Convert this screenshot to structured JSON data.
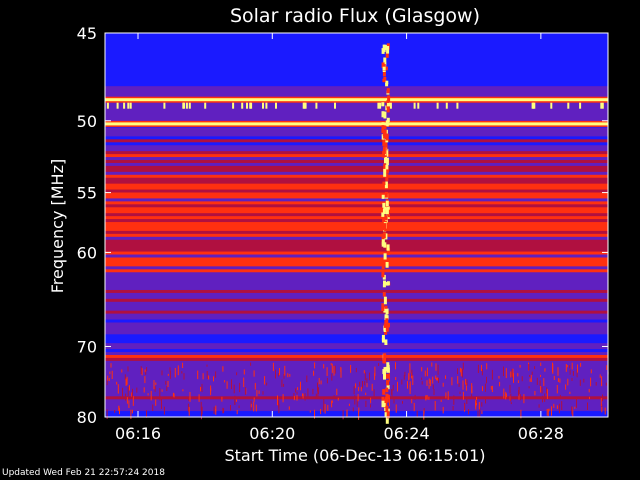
{
  "chart_data": {
    "type": "heatmap",
    "title": "Solar radio Flux (Glasgow)",
    "xlabel": "Start Time (06-Dec-13 06:15:01)",
    "ylabel": "Frequency [MHz]",
    "x_ticks": [
      "06:16",
      "06:20",
      "06:24",
      "06:28"
    ],
    "y_ticks": [
      "45",
      "50",
      "55",
      "60",
      "70",
      "80"
    ],
    "y_scale": "reciprocal",
    "ylim": [
      45,
      80
    ],
    "xlim": [
      "06:15:01",
      "06:30:00"
    ],
    "colors": {
      "low": "#1a1aff",
      "mid_low": "#6020c0",
      "mid": "#b01040",
      "high": "#ff3010",
      "peak": "#ffff80"
    },
    "features": {
      "burst_time": "06:23:20",
      "bright_bands_mhz": [
        48.7,
        50.2
      ],
      "quiet_bands_mhz": [
        [
          45,
          48
        ],
        [
          68.5,
          69.5
        ],
        [
          79,
          80
        ]
      ],
      "active_bands_mhz": [
        [
          52,
          62
        ],
        [
          71,
          72
        ]
      ]
    }
  },
  "footer": {
    "updated": "Updated Wed Feb 21 22:57:24 2018"
  }
}
